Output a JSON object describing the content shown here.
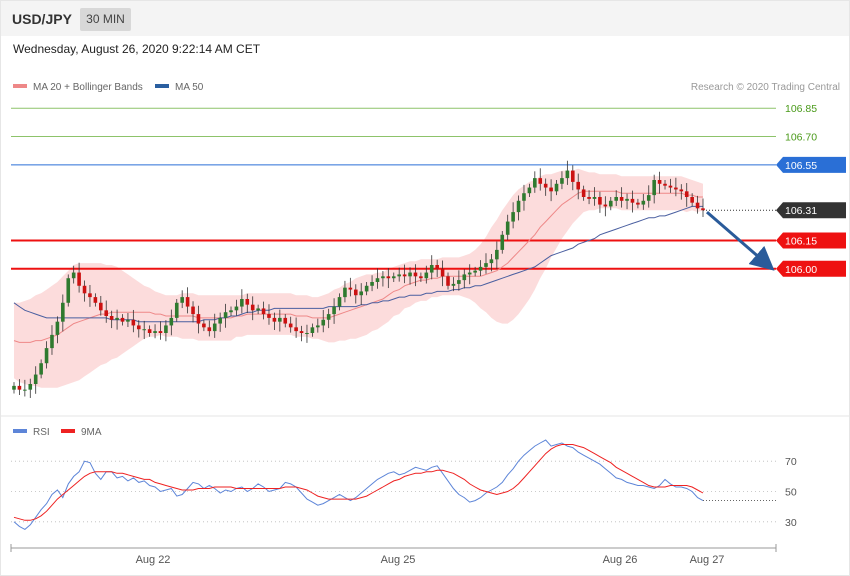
{
  "header": {
    "symbol": "USD/JPY",
    "timeframe": "30 MIN",
    "datetime": "Wednesday, August 26, 2020 9:22:14 AM CET"
  },
  "colors": {
    "candle_up": "#2f7a2f",
    "candle_down": "#cc1111",
    "bollinger_fill": "#fbd6d6",
    "ma20": "#ee8888",
    "ma50": "#4a5fa0",
    "resistance": "#8dc36a",
    "level_blue": "#2a6fd6",
    "support": "#ee1111",
    "current": "#333333",
    "arrow": "#2a5b9a",
    "rsi": "#5d85d8",
    "rsi_ma": "#ee2222"
  },
  "chart_data": [
    {
      "type": "candlestick",
      "title": "",
      "attribution": "Research © 2020 Trading Central",
      "legend": [
        {
          "name": "MA 20 + Bollinger Bands",
          "color": "#ee8888"
        },
        {
          "name": "MA 50",
          "color": "#4a5fa0"
        }
      ],
      "legend_position": "top-left",
      "ylim": [
        105.3,
        106.92
      ],
      "levels": [
        {
          "value": 106.85,
          "label": "106.85",
          "kind": "resistance"
        },
        {
          "value": 106.7,
          "label": "106.70",
          "kind": "resistance"
        },
        {
          "value": 106.55,
          "label": "106.55",
          "kind": "pivot"
        },
        {
          "value": 106.31,
          "label": "106.31",
          "kind": "current"
        },
        {
          "value": 106.15,
          "label": "106.15",
          "kind": "support"
        },
        {
          "value": 106.0,
          "label": "106.00",
          "kind": "support"
        }
      ],
      "forecast_arrow": {
        "from": 106.3,
        "to": 106.0
      },
      "close": [
        105.38,
        105.36,
        105.36,
        105.39,
        105.44,
        105.5,
        105.58,
        105.65,
        105.72,
        105.82,
        105.95,
        105.98,
        105.91,
        105.87,
        105.85,
        105.82,
        105.78,
        105.75,
        105.73,
        105.74,
        105.72,
        105.73,
        105.7,
        105.68,
        105.68,
        105.66,
        105.67,
        105.66,
        105.7,
        105.74,
        105.82,
        105.85,
        105.8,
        105.76,
        105.71,
        105.69,
        105.67,
        105.71,
        105.74,
        105.77,
        105.78,
        105.8,
        105.84,
        105.81,
        105.78,
        105.79,
        105.76,
        105.74,
        105.72,
        105.74,
        105.71,
        105.69,
        105.67,
        105.66,
        105.66,
        105.69,
        105.7,
        105.73,
        105.76,
        105.8,
        105.85,
        105.9,
        105.89,
        105.86,
        105.88,
        105.91,
        105.93,
        105.95,
        105.96,
        105.95,
        105.96,
        105.97,
        105.96,
        105.98,
        105.96,
        105.95,
        105.98,
        106.02,
        106.0,
        105.96,
        105.91,
        105.92,
        105.94,
        105.97,
        105.98,
        105.99,
        106.01,
        106.03,
        106.05,
        106.1,
        106.18,
        106.25,
        106.3,
        106.36,
        106.4,
        106.43,
        106.48,
        106.45,
        106.43,
        106.41,
        106.45,
        106.48,
        106.52,
        106.46,
        106.42,
        106.38,
        106.37,
        106.38,
        106.34,
        106.33,
        106.36,
        106.38,
        106.36,
        106.37,
        106.35,
        106.34,
        106.36,
        106.39,
        106.47,
        106.45,
        106.44,
        106.43,
        106.42,
        106.41,
        106.38,
        106.35,
        106.32,
        106.31
      ],
      "ma50": [
        105.82,
        105.8,
        105.78,
        105.77,
        105.76,
        105.75,
        105.74,
        105.74,
        105.74,
        105.74,
        105.74,
        105.74,
        105.74,
        105.74,
        105.74,
        105.74,
        105.74,
        105.74,
        105.73,
        105.73,
        105.73,
        105.73,
        105.73,
        105.72,
        105.72,
        105.72,
        105.72,
        105.72,
        105.72,
        105.72,
        105.72,
        105.72,
        105.72,
        105.72,
        105.72,
        105.73,
        105.73,
        105.73,
        105.74,
        105.74,
        105.75,
        105.75,
        105.76,
        105.77,
        105.77,
        105.78,
        105.78,
        105.78,
        105.79,
        105.79,
        105.79,
        105.79,
        105.79,
        105.79,
        105.79,
        105.79,
        105.79,
        105.79,
        105.8,
        105.8,
        105.8,
        105.8,
        105.8,
        105.8,
        105.81,
        105.81,
        105.82,
        105.82,
        105.83,
        105.83,
        105.84,
        105.85,
        105.85,
        105.86,
        105.86,
        105.86,
        105.87,
        105.87,
        105.88,
        105.88,
        105.88,
        105.89,
        105.89,
        105.9,
        105.9,
        105.91,
        105.91,
        105.92,
        105.93,
        105.94,
        105.95,
        105.96,
        105.97,
        105.98,
        105.99,
        106.0,
        106.01,
        106.03,
        106.05,
        106.07,
        106.08,
        106.09,
        106.1,
        106.11,
        106.13,
        106.14,
        106.15,
        106.16,
        106.18,
        106.19,
        106.2,
        106.21,
        106.22,
        106.23,
        106.24,
        106.25,
        106.26,
        106.27,
        106.27,
        106.28,
        106.28,
        106.29,
        106.3,
        106.31,
        106.32,
        106.33,
        106.33,
        106.33
      ],
      "ma20": [
        105.62,
        105.61,
        105.61,
        105.61,
        105.62,
        105.62,
        105.63,
        105.64,
        105.65,
        105.67,
        105.69,
        105.71,
        105.72,
        105.73,
        105.74,
        105.75,
        105.76,
        105.76,
        105.77,
        105.77,
        105.77,
        105.77,
        105.77,
        105.77,
        105.77,
        105.77,
        105.76,
        105.76,
        105.75,
        105.75,
        105.75,
        105.75,
        105.75,
        105.75,
        105.74,
        105.74,
        105.74,
        105.74,
        105.74,
        105.74,
        105.74,
        105.75,
        105.75,
        105.76,
        105.76,
        105.76,
        105.76,
        105.76,
        105.76,
        105.76,
        105.76,
        105.76,
        105.75,
        105.75,
        105.75,
        105.74,
        105.74,
        105.74,
        105.74,
        105.75,
        105.76,
        105.77,
        105.78,
        105.79,
        105.8,
        105.81,
        105.82,
        105.83,
        105.84,
        105.86,
        105.88,
        105.89,
        105.91,
        105.92,
        105.93,
        105.94,
        105.94,
        105.95,
        105.95,
        105.96,
        105.96,
        105.96,
        105.96,
        105.96,
        105.96,
        105.96,
        105.96,
        105.97,
        105.98,
        105.99,
        106.01,
        106.03,
        106.06,
        106.09,
        106.12,
        106.15,
        106.18,
        106.22,
        106.25,
        106.28,
        106.31,
        106.34,
        106.36,
        106.38,
        106.4,
        106.41,
        106.41,
        106.41,
        106.41,
        106.41,
        106.41,
        106.41,
        106.4,
        106.4,
        106.4,
        106.4,
        106.4,
        106.4,
        106.4,
        106.4,
        106.4,
        106.4,
        106.4,
        106.4,
        106.39,
        106.39,
        106.38,
        106.38
      ],
      "bb_width": [
        0.2,
        0.21,
        0.22,
        0.23,
        0.24,
        0.25,
        0.26,
        0.27,
        0.28,
        0.29,
        0.3,
        0.31,
        0.31,
        0.3,
        0.29,
        0.28,
        0.27,
        0.26,
        0.25,
        0.24,
        0.22,
        0.2,
        0.18,
        0.16,
        0.14,
        0.13,
        0.12,
        0.11,
        0.11,
        0.11,
        0.11,
        0.12,
        0.12,
        0.12,
        0.12,
        0.12,
        0.12,
        0.12,
        0.12,
        0.12,
        0.12,
        0.11,
        0.11,
        0.11,
        0.11,
        0.11,
        0.11,
        0.11,
        0.11,
        0.11,
        0.11,
        0.11,
        0.11,
        0.11,
        0.11,
        0.11,
        0.11,
        0.12,
        0.13,
        0.14,
        0.14,
        0.15,
        0.15,
        0.16,
        0.16,
        0.16,
        0.15,
        0.15,
        0.14,
        0.14,
        0.13,
        0.13,
        0.12,
        0.12,
        0.11,
        0.11,
        0.11,
        0.1,
        0.1,
        0.1,
        0.1,
        0.1,
        0.1,
        0.11,
        0.12,
        0.14,
        0.17,
        0.2,
        0.24,
        0.27,
        0.3,
        0.32,
        0.33,
        0.33,
        0.32,
        0.31,
        0.29,
        0.27,
        0.25,
        0.22,
        0.2,
        0.18,
        0.16,
        0.14,
        0.13,
        0.11,
        0.1,
        0.1,
        0.09,
        0.09,
        0.09,
        0.09,
        0.09,
        0.09,
        0.09,
        0.09,
        0.09,
        0.09,
        0.09,
        0.09,
        0.09,
        0.09,
        0.09,
        0.09,
        0.09,
        0.08,
        0.08,
        0.07
      ]
    },
    {
      "type": "line",
      "title": "",
      "legend": [
        {
          "name": "RSI",
          "color": "#5d85d8"
        },
        {
          "name": "9MA",
          "color": "#ee2222"
        }
      ],
      "legend_position": "top-left",
      "ylim": [
        18,
        84
      ],
      "yticks": [
        30,
        50,
        70
      ],
      "categories": [
        "Aug 22",
        "Aug 25",
        "Aug 26",
        "Aug 27"
      ],
      "rsi": [
        30,
        27,
        25,
        28,
        33,
        38,
        42,
        48,
        51,
        46,
        55,
        60,
        63,
        70,
        69,
        62,
        58,
        63,
        63,
        59,
        60,
        57,
        59,
        56,
        57,
        54,
        53,
        50,
        51,
        52,
        47,
        48,
        52,
        56,
        55,
        52,
        54,
        52,
        49,
        51,
        50,
        52,
        53,
        50,
        52,
        55,
        53,
        50,
        51,
        52,
        56,
        55,
        53,
        49,
        45,
        43,
        41,
        42,
        44,
        46,
        48,
        46,
        44,
        46,
        49,
        52,
        55,
        58,
        60,
        62,
        63,
        61,
        62,
        64,
        66,
        65,
        64,
        66,
        67,
        62,
        57,
        52,
        48,
        46,
        43,
        44,
        46,
        49,
        51,
        53,
        56,
        61,
        65,
        70,
        74,
        77,
        80,
        82,
        84,
        80,
        81,
        82,
        80,
        79,
        76,
        74,
        72,
        70,
        68,
        65,
        62,
        59,
        58,
        56,
        55,
        54,
        54,
        53,
        52,
        54,
        58,
        55,
        53,
        53,
        52,
        50,
        46,
        44
      ],
      "rsi_ma": [
        33,
        32,
        31,
        31,
        32,
        34,
        37,
        41,
        45,
        48,
        51,
        54,
        57,
        60,
        62,
        63,
        63,
        63,
        63,
        62,
        62,
        61,
        60,
        59,
        58,
        58,
        56,
        55,
        54,
        53,
        52,
        51,
        51,
        51,
        52,
        52,
        52,
        53,
        53,
        53,
        53,
        52,
        52,
        52,
        52,
        52,
        52,
        52,
        52,
        52,
        53,
        53,
        53,
        52,
        51,
        49,
        47,
        46,
        45,
        45,
        45,
        45,
        45,
        45,
        46,
        47,
        49,
        51,
        53,
        55,
        57,
        58,
        60,
        61,
        62,
        62,
        63,
        63,
        64,
        64,
        63,
        62,
        60,
        58,
        55,
        53,
        51,
        50,
        49,
        48,
        49,
        50,
        52,
        55,
        59,
        63,
        67,
        71,
        75,
        78,
        80,
        81,
        81,
        81,
        80,
        79,
        77,
        75,
        73,
        71,
        69,
        66,
        64,
        62,
        60,
        58,
        56,
        54,
        53,
        53,
        53,
        54,
        54,
        54,
        54,
        53,
        51,
        49
      ]
    }
  ]
}
